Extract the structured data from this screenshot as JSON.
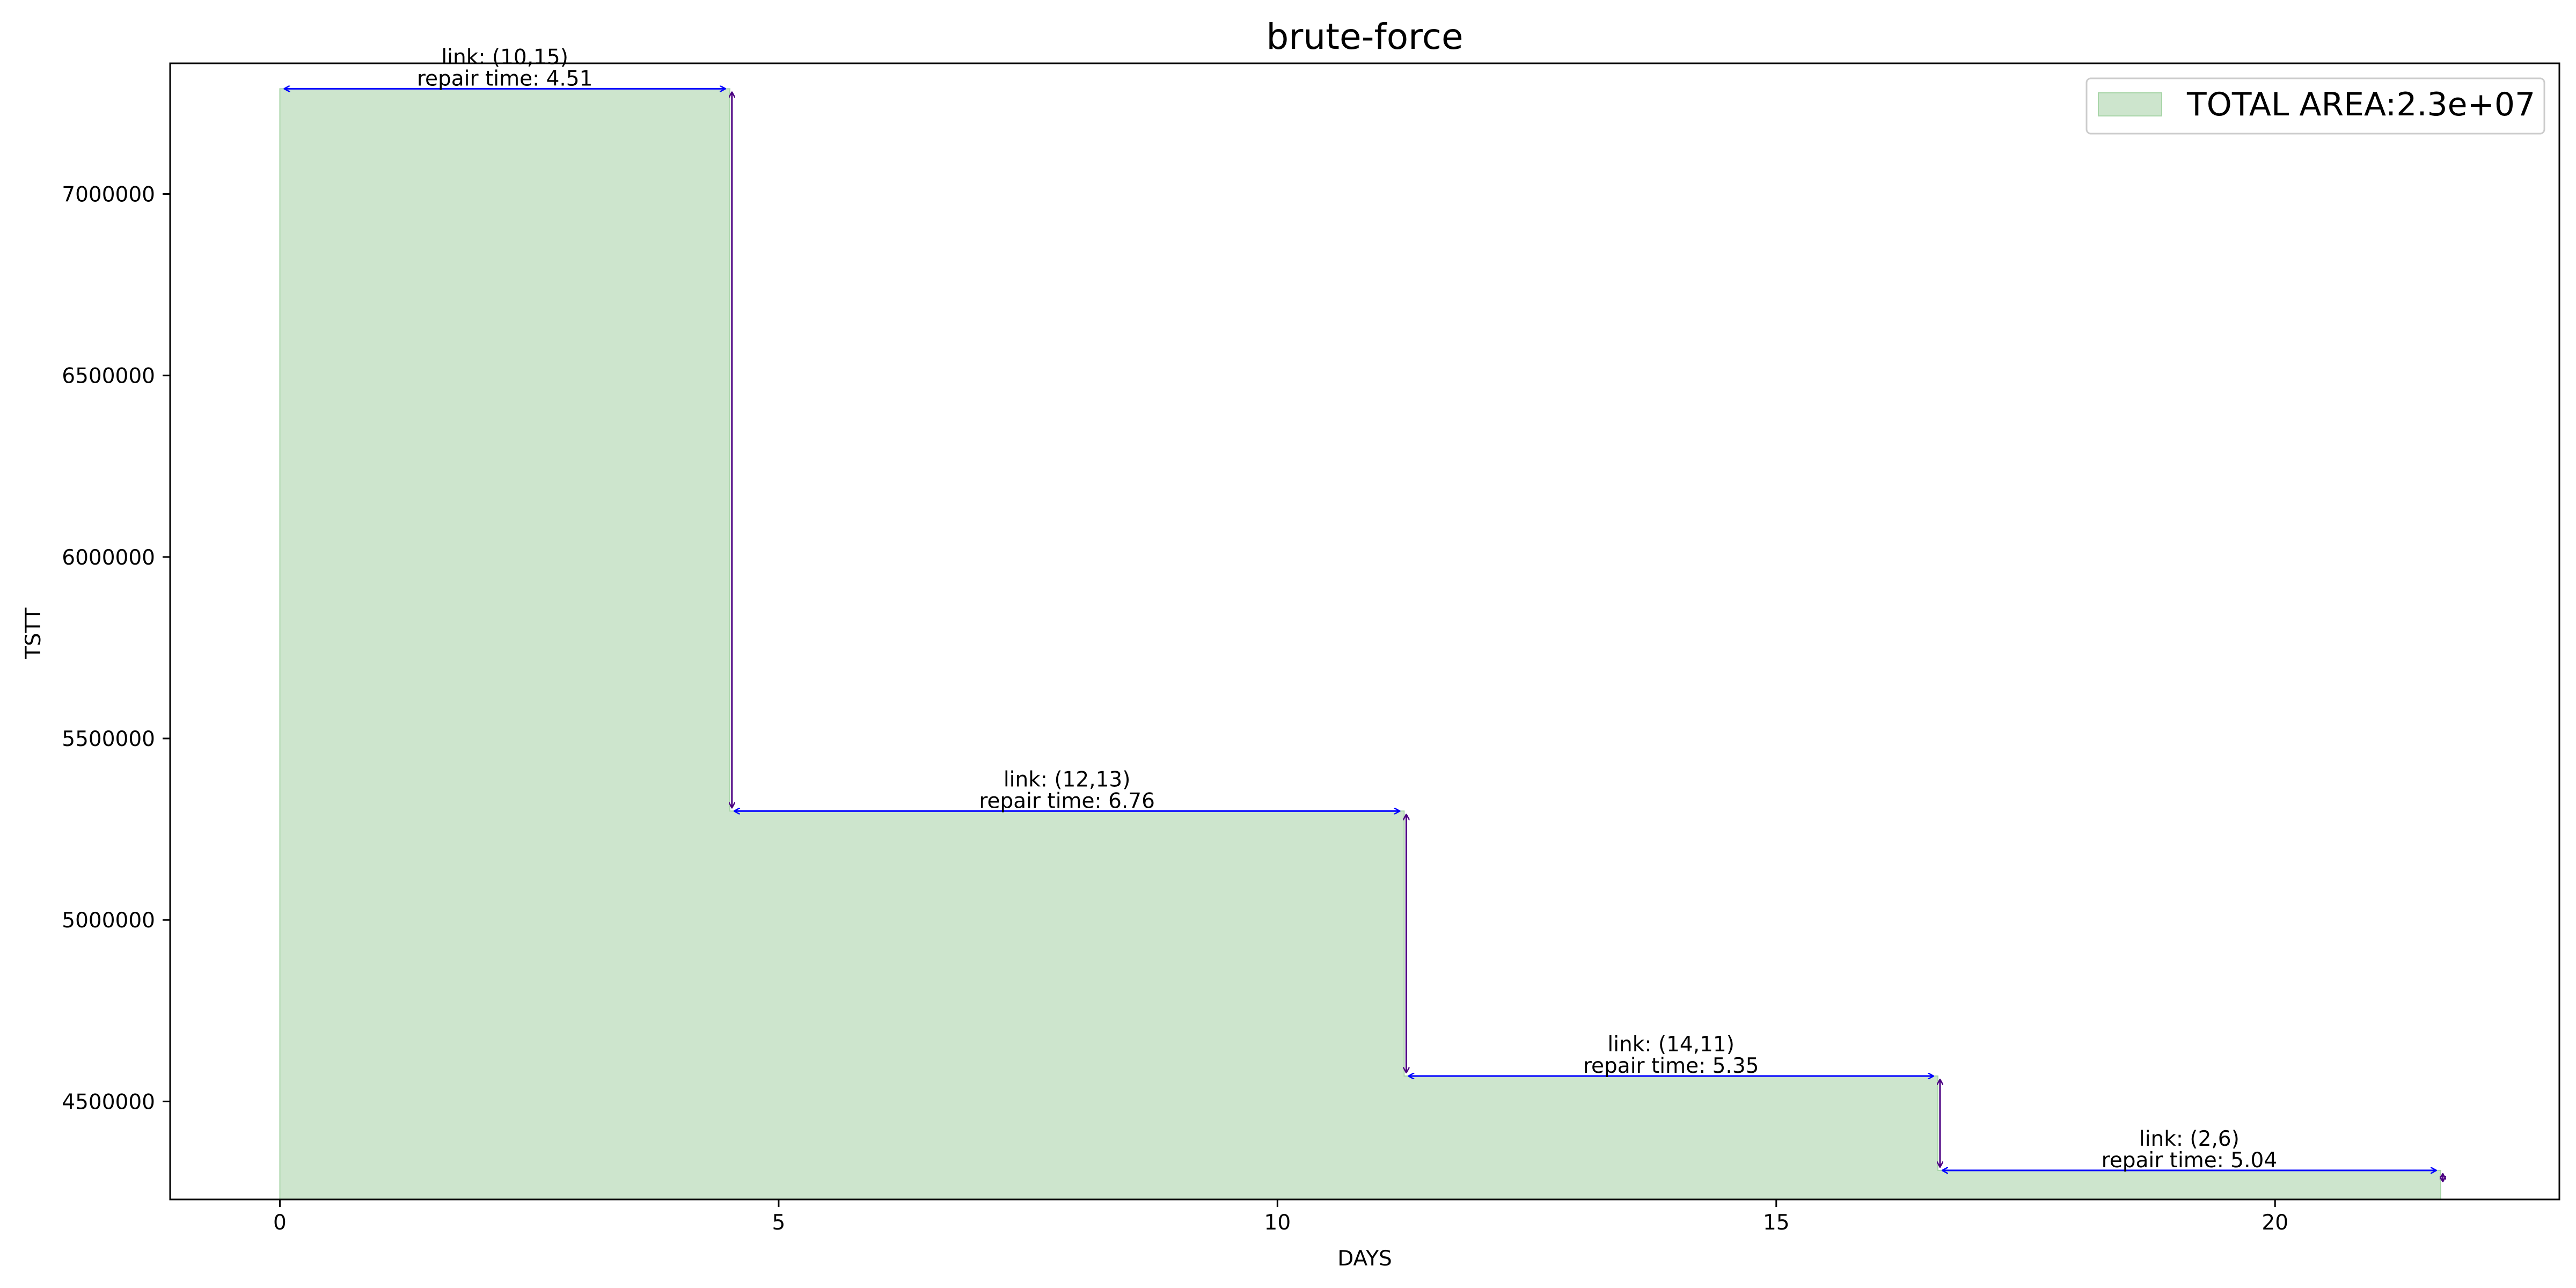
{
  "chart_data": {
    "type": "area",
    "title": "brute-force",
    "xlabel": "DAYS",
    "ylabel": "TSTT",
    "xlim": [
      -1.1,
      22.85
    ],
    "ylim": [
      4230000,
      7360000
    ],
    "x_ticks": [
      0,
      5,
      10,
      15,
      20
    ],
    "y_ticks": [
      4500000,
      5000000,
      5500000,
      6000000,
      6500000,
      7000000
    ],
    "grid": false,
    "legend_position": "upper right",
    "legend": [
      {
        "label": "TOTAL AREA:2.3e+07",
        "color": "#cde5cd"
      }
    ],
    "fill_color": "#cde5cd",
    "fill_edge_color": "#a8d5a8",
    "horizontal_arrow_color": "#0000ff",
    "vertical_arrow_color": "#4b0082",
    "steps": [
      {
        "x0": 0.0,
        "x1": 4.51,
        "y": 7290000
      },
      {
        "x0": 4.51,
        "x1": 11.27,
        "y": 5300000
      },
      {
        "x0": 11.27,
        "x1": 16.62,
        "y": 4570000
      },
      {
        "x0": 16.62,
        "x1": 21.66,
        "y": 4310000
      },
      {
        "x0": 21.66,
        "x1": 21.66,
        "y": 4270000
      }
    ],
    "annotations": [
      {
        "link": "link: (10,15)",
        "repair": "repair time: 4.51",
        "x0": 0.0,
        "x1": 4.51,
        "y": 7290000
      },
      {
        "link": "link: (12,13)",
        "repair": "repair time: 6.76",
        "x0": 4.51,
        "x1": 11.27,
        "y": 5300000
      },
      {
        "link": "link: (14,11)",
        "repair": "repair time: 5.35",
        "x0": 11.27,
        "x1": 16.62,
        "y": 4570000
      },
      {
        "link": "link: (2,6)",
        "repair": "repair time: 5.04",
        "x0": 16.62,
        "x1": 21.66,
        "y": 4310000
      }
    ],
    "drops": [
      {
        "x": 4.51,
        "y_from": 7290000,
        "y_to": 5300000
      },
      {
        "x": 11.27,
        "y_from": 5300000,
        "y_to": 4570000
      },
      {
        "x": 16.62,
        "y_from": 4570000,
        "y_to": 4310000
      },
      {
        "x": 21.66,
        "y_from": 4310000,
        "y_to": 4270000
      }
    ]
  }
}
